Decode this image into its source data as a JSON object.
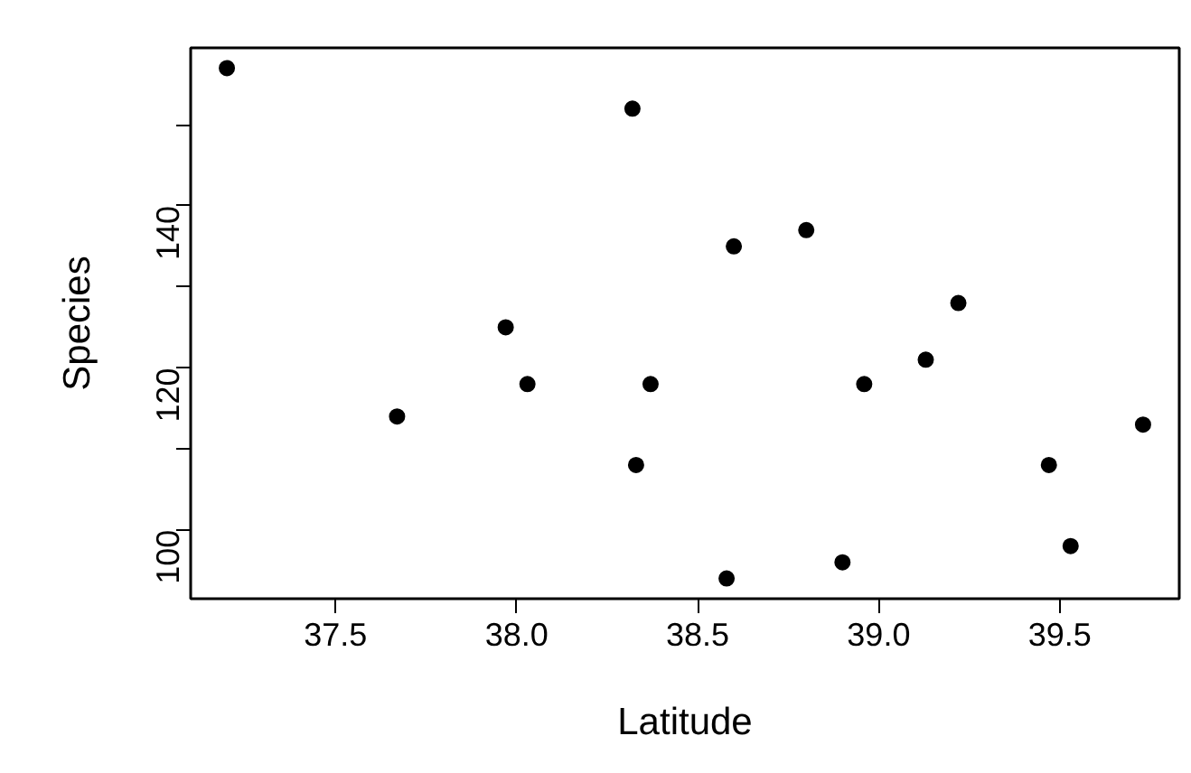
{
  "chart_data": {
    "type": "scatter",
    "xlabel": "Latitude",
    "ylabel": "Species",
    "x": [
      37.2,
      38.32,
      37.97,
      38.03,
      38.37,
      37.67,
      38.33,
      38.6,
      38.8,
      39.22,
      39.13,
      38.96,
      39.73,
      39.47,
      39.53,
      38.9,
      38.58
    ],
    "values": [
      157,
      152,
      125,
      118,
      118,
      114,
      108,
      135,
      137,
      128,
      121,
      118,
      113,
      108,
      98,
      96,
      94
    ],
    "color": "#000000",
    "marker": "circle",
    "xlim": [
      37.1,
      39.83
    ],
    "ylim": [
      91.5,
      159.5
    ],
    "xticks": [
      37.5,
      {
        "value": 38.0,
        "label": "38.0"
      },
      38.5,
      {
        "value": 39.0,
        "label": "39.0"
      },
      39.5
    ],
    "yticks": [
      100,
      {
        "value": 110,
        "label": null
      },
      120,
      {
        "value": 130,
        "label": null
      },
      140,
      {
        "value": 150,
        "label": null
      }
    ],
    "grid": false
  }
}
